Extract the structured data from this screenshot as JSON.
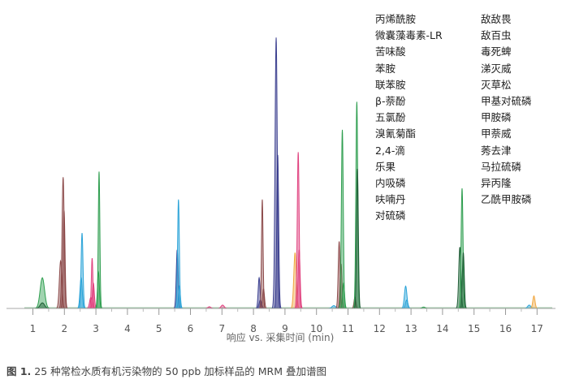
{
  "chart_data": {
    "type": "line",
    "title": "",
    "xlabel": "响应 vs. 采集时间 (min)",
    "ylabel": "",
    "xlim": [
      0.3,
      17.5
    ],
    "ylim": [
      0,
      1
    ],
    "x_ticks": [
      1,
      2,
      3,
      4,
      5,
      6,
      7,
      8,
      9,
      10,
      11,
      12,
      13,
      14,
      15,
      16,
      17
    ],
    "grid": false,
    "legend_position": "top-right",
    "legend_columns": [
      [
        "丙烯酰胺",
        "微囊藻毒素-LR",
        "苦味酸",
        "苯胺",
        "联苯胺",
        "β-萘酚",
        "五氯酚",
        "溴氰菊酯",
        "2,4-滴",
        "乐果",
        "内吸磷",
        "呋喃丹",
        "对硫磷"
      ],
      [
        "敌敌畏",
        "敌百虫",
        "毒死蜱",
        "涕灭威",
        "灭草松",
        "甲基对硫磷",
        "甲胺磷",
        "甲萘威",
        "莠去津",
        "马拉硫磷",
        "异丙隆",
        "乙酰甲胺磷"
      ]
    ],
    "colors": {
      "green": "#2e9e4f",
      "dark_green": "#1d5e35",
      "brown": "#8c4a4a",
      "blue": "#2aa3d8",
      "navy": "#3b3f8f",
      "pink": "#e0407e",
      "orange": "#f0a640",
      "purple": "#7a4c9c"
    },
    "peaks": [
      {
        "x": 1.3,
        "height": 0.11,
        "width": 0.07,
        "color": "green"
      },
      {
        "x": 1.3,
        "height": 0.02,
        "width": 0.07,
        "color": "dark_green"
      },
      {
        "x": 1.88,
        "height": 0.17,
        "width": 0.04,
        "color": "brown"
      },
      {
        "x": 1.96,
        "height": 0.47,
        "width": 0.035,
        "color": "brown"
      },
      {
        "x": 1.99,
        "height": 0.35,
        "width": 0.03,
        "color": "brown"
      },
      {
        "x": 2.53,
        "height": 0.11,
        "width": 0.035,
        "color": "blue"
      },
      {
        "x": 2.56,
        "height": 0.27,
        "width": 0.03,
        "color": "blue"
      },
      {
        "x": 2.84,
        "height": 0.04,
        "width": 0.04,
        "color": "pink"
      },
      {
        "x": 2.88,
        "height": 0.18,
        "width": 0.025,
        "color": "pink"
      },
      {
        "x": 2.92,
        "height": 0.09,
        "width": 0.03,
        "color": "pink"
      },
      {
        "x": 3.08,
        "height": 0.13,
        "width": 0.03,
        "color": "green"
      },
      {
        "x": 3.1,
        "height": 0.49,
        "width": 0.025,
        "color": "green"
      },
      {
        "x": 5.58,
        "height": 0.21,
        "width": 0.03,
        "color": "navy"
      },
      {
        "x": 5.62,
        "height": 0.39,
        "width": 0.028,
        "color": "blue"
      },
      {
        "x": 5.65,
        "height": 0.08,
        "width": 0.03,
        "color": "blue"
      },
      {
        "x": 6.6,
        "height": 0.006,
        "width": 0.05,
        "color": "pink"
      },
      {
        "x": 7.02,
        "height": 0.012,
        "width": 0.05,
        "color": "pink"
      },
      {
        "x": 8.18,
        "height": 0.11,
        "width": 0.03,
        "color": "navy"
      },
      {
        "x": 8.22,
        "height": 0.03,
        "width": 0.04,
        "color": "navy"
      },
      {
        "x": 8.28,
        "height": 0.39,
        "width": 0.025,
        "color": "brown"
      },
      {
        "x": 8.32,
        "height": 0.07,
        "width": 0.03,
        "color": "brown"
      },
      {
        "x": 8.72,
        "height": 0.97,
        "width": 0.035,
        "color": "navy"
      },
      {
        "x": 8.77,
        "height": 0.55,
        "width": 0.03,
        "color": "navy"
      },
      {
        "x": 9.32,
        "height": 0.2,
        "width": 0.04,
        "color": "orange"
      },
      {
        "x": 9.42,
        "height": 0.56,
        "width": 0.03,
        "color": "pink"
      },
      {
        "x": 9.45,
        "height": 0.21,
        "width": 0.03,
        "color": "pink"
      },
      {
        "x": 10.55,
        "height": 0.01,
        "width": 0.06,
        "color": "blue"
      },
      {
        "x": 10.72,
        "height": 0.24,
        "width": 0.03,
        "color": "brown"
      },
      {
        "x": 10.78,
        "height": 0.16,
        "width": 0.03,
        "color": "brown"
      },
      {
        "x": 10.82,
        "height": 0.64,
        "width": 0.03,
        "color": "green"
      },
      {
        "x": 10.86,
        "height": 0.09,
        "width": 0.03,
        "color": "green"
      },
      {
        "x": 11.22,
        "height": 0.04,
        "width": 0.03,
        "color": "brown"
      },
      {
        "x": 11.28,
        "height": 0.74,
        "width": 0.03,
        "color": "green"
      },
      {
        "x": 11.3,
        "height": 0.5,
        "width": 0.028,
        "color": "dark_green"
      },
      {
        "x": 12.83,
        "height": 0.08,
        "width": 0.04,
        "color": "blue"
      },
      {
        "x": 12.86,
        "height": 0.03,
        "width": 0.04,
        "color": "blue"
      },
      {
        "x": 13.4,
        "height": 0.005,
        "width": 0.05,
        "color": "green"
      },
      {
        "x": 14.55,
        "height": 0.22,
        "width": 0.035,
        "color": "dark_green"
      },
      {
        "x": 14.62,
        "height": 0.43,
        "width": 0.03,
        "color": "green"
      },
      {
        "x": 14.66,
        "height": 0.2,
        "width": 0.03,
        "color": "dark_green"
      },
      {
        "x": 16.75,
        "height": 0.012,
        "width": 0.05,
        "color": "blue"
      },
      {
        "x": 16.9,
        "height": 0.045,
        "width": 0.035,
        "color": "orange"
      }
    ]
  },
  "caption": {
    "label": "图 1.",
    "text": " 25 种常检水质有机污染物的 50 ppb 加标样品的 MRM 叠加谱图"
  }
}
